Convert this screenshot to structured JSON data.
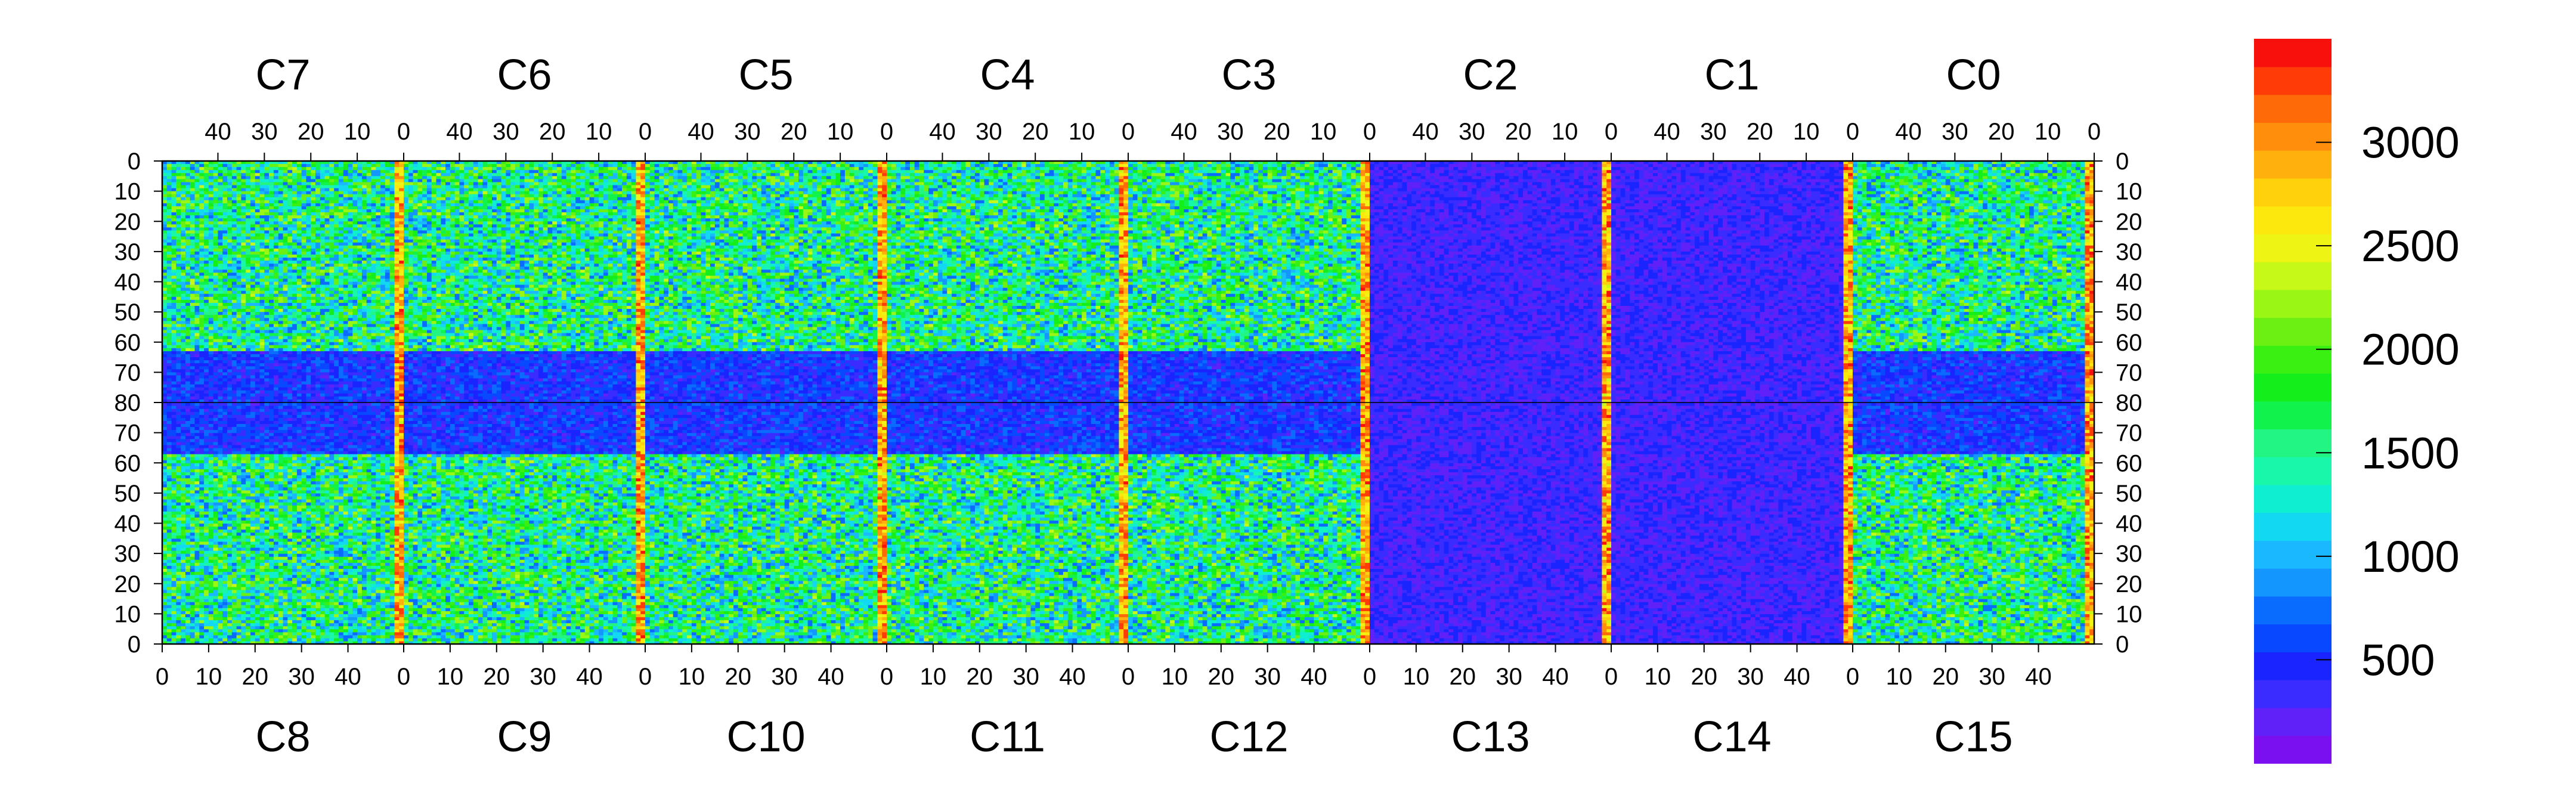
{
  "chart_data": {
    "type": "heatmap",
    "title": "",
    "xlabel": "",
    "ylabel": "",
    "zlim": [
      0,
      3500
    ],
    "colorbar": {
      "tick_labels": [
        "500",
        "1000",
        "1500",
        "2000",
        "2500",
        "3000"
      ],
      "tick_values": [
        500,
        1000,
        1500,
        2000,
        2500,
        3000
      ],
      "palette": [
        "#7a10f0",
        "#6020f8",
        "#3a2cff",
        "#1a24ff",
        "#0848ff",
        "#0a6cff",
        "#1496ff",
        "#1ab8ff",
        "#12d8f2",
        "#10eed2",
        "#18f7aa",
        "#22f583",
        "#12f24c",
        "#14ee1a",
        "#3af012",
        "#6cf014",
        "#9af614",
        "#c6f818",
        "#eef414",
        "#fde80d",
        "#ffd00c",
        "#ffb00c",
        "#ff8e0c",
        "#ff6a08",
        "#ff3c08",
        "#f7100c"
      ]
    },
    "top_chips": [
      "C7",
      "C6",
      "C5",
      "C4",
      "C3",
      "C2",
      "C1",
      "C0"
    ],
    "bottom_chips": [
      "C8",
      "C9",
      "C10",
      "C11",
      "C12",
      "C13",
      "C14",
      "C15"
    ],
    "x_top_tick_labels": [
      "40",
      "30",
      "20",
      "10",
      "0"
    ],
    "x_bottom_tick_labels": [
      "0",
      "10",
      "20",
      "30",
      "40"
    ],
    "y_top_tick_labels": [
      "0",
      "10",
      "20",
      "30",
      "40",
      "50",
      "60",
      "70",
      "80"
    ],
    "y_bottom_tick_labels": [
      "80",
      "70",
      "60",
      "50",
      "40",
      "30",
      "20",
      "10",
      "0"
    ],
    "chip_columns": 52,
    "chip_rows": 80,
    "overall_level": 1600
  }
}
